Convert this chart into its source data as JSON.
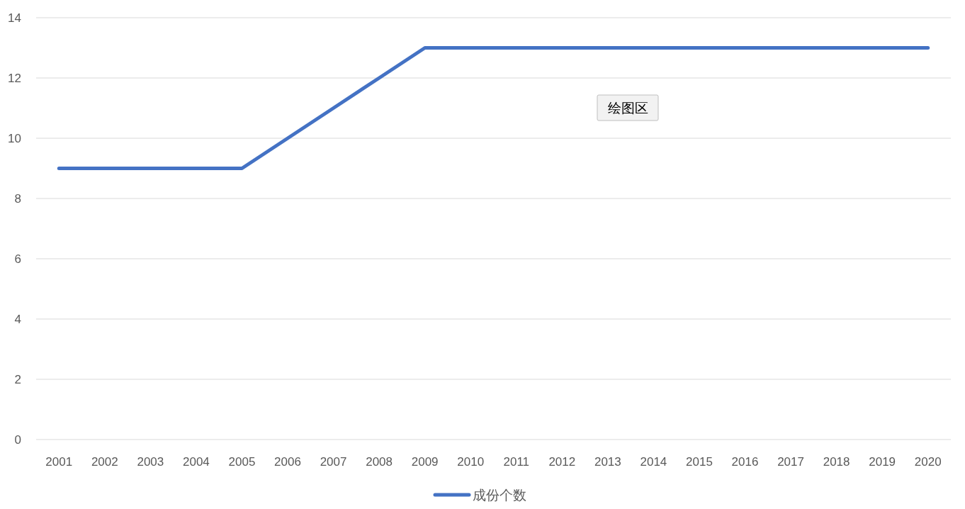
{
  "chart_data": {
    "type": "line",
    "categories": [
      "2001",
      "2002",
      "2003",
      "2004",
      "2005",
      "2006",
      "2007",
      "2008",
      "2009",
      "2010",
      "2011",
      "2012",
      "2013",
      "2014",
      "2015",
      "2016",
      "2017",
      "2018",
      "2019",
      "2020"
    ],
    "series": [
      {
        "name": "成份个数",
        "color": "#4472c4",
        "values": [
          9,
          9,
          9,
          9,
          9,
          10,
          11,
          12,
          13,
          13,
          13,
          13,
          13,
          13,
          13,
          13,
          13,
          13,
          13,
          13
        ]
      }
    ],
    "ylim": [
      0,
      14
    ],
    "yticks": [
      0,
      2,
      4,
      6,
      8,
      10,
      12,
      14
    ],
    "grid": "y",
    "legend": "bottom",
    "marker": "none",
    "line_style": "solid",
    "annotations": [
      "绘图区"
    ]
  }
}
